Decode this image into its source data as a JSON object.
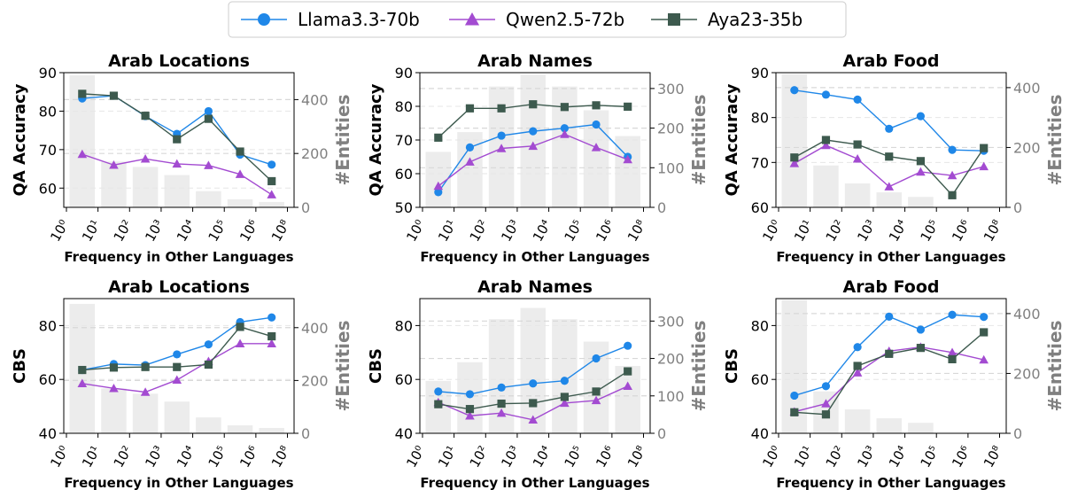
{
  "legend": {
    "placement": "top-center",
    "entries": [
      {
        "name": "Llama3.3-70b",
        "color": "#1f87e8",
        "marker": "circle"
      },
      {
        "name": "Qwen2.5-72b",
        "color": "#a34bd1",
        "marker": "triangle"
      },
      {
        "name": "Aya23-35b",
        "color": "#3d5a4e",
        "marker": "square"
      }
    ]
  },
  "styles": {
    "bar_color": "#ececec",
    "right_axis_color": "#808080",
    "grid": "dashed horizontal"
  },
  "chart_data": [
    {
      "type": "line",
      "title": "Arab Locations",
      "xlabel": "Frequency in Other Languages",
      "ylabel": "QA Accuracy",
      "y2label": "#Entities",
      "xticks": [
        "10^0",
        "10^1",
        "10^2",
        "10^3",
        "10^4",
        "10^5",
        "10^6",
        "10^8"
      ],
      "ylim": [
        55,
        90
      ],
      "yticks": [
        60,
        70,
        80,
        90
      ],
      "y2lim": [
        0,
        500
      ],
      "y2ticks": [
        0,
        200,
        400
      ],
      "bars": [
        490,
        170,
        150,
        120,
        60,
        30,
        20
      ],
      "series": [
        {
          "name": "Llama3.3-70b",
          "values": [
            83.3,
            84.0,
            78.7,
            74.1,
            80.0,
            68.7,
            66.1
          ]
        },
        {
          "name": "Qwen2.5-72b",
          "values": [
            68.8,
            66.0,
            67.6,
            66.3,
            65.9,
            63.6,
            58.3
          ]
        },
        {
          "name": "Aya23-35b",
          "values": [
            84.5,
            84.0,
            78.8,
            72.7,
            78.0,
            69.5,
            61.8
          ]
        }
      ]
    },
    {
      "type": "line",
      "title": "Arab Names",
      "xlabel": "Frequency in Other Languages",
      "ylabel": "QA Accuracy",
      "y2label": "#Entities",
      "xticks": [
        "10^0",
        "10^1",
        "10^2",
        "10^3",
        "10^4",
        "10^5",
        "10^6",
        "10^8"
      ],
      "ylim": [
        50,
        90
      ],
      "yticks": [
        50,
        60,
        70,
        80,
        90
      ],
      "y2lim": [
        0,
        340
      ],
      "y2ticks": [
        0,
        100,
        200,
        300
      ],
      "bars": [
        140,
        190,
        305,
        335,
        305,
        245,
        180
      ],
      "series": [
        {
          "name": "Llama3.3-70b",
          "values": [
            54.5,
            67.8,
            71.3,
            72.6,
            73.5,
            74.6,
            65.0
          ]
        },
        {
          "name": "Qwen2.5-72b",
          "values": [
            56.3,
            63.5,
            67.5,
            68.2,
            71.7,
            67.8,
            64.2
          ]
        },
        {
          "name": "Aya23-35b",
          "values": [
            70.7,
            79.4,
            79.4,
            80.6,
            79.8,
            80.3,
            79.9
          ]
        }
      ]
    },
    {
      "type": "line",
      "title": "Arab Food",
      "xlabel": "Frequency in Other Languages",
      "ylabel": "QA Accuracy",
      "y2label": "#Entities",
      "xticks": [
        "10^0",
        "10^1",
        "10^2",
        "10^3",
        "10^4",
        "10^5",
        "10^6",
        "10^8"
      ],
      "ylim": [
        60,
        90
      ],
      "yticks": [
        60,
        70,
        80,
        90
      ],
      "y2lim": [
        0,
        450
      ],
      "y2ticks": [
        0,
        200,
        400
      ],
      "bars": [
        445,
        140,
        80,
        50,
        35,
        0,
        0
      ],
      "series": [
        {
          "name": "Llama3.3-70b",
          "values": [
            86.1,
            85.1,
            84.0,
            77.5,
            80.3,
            72.8,
            72.6
          ]
        },
        {
          "name": "Qwen2.5-72b",
          "values": [
            69.8,
            73.8,
            70.8,
            64.6,
            67.9,
            67.1,
            69.1
          ]
        },
        {
          "name": "Aya23-35b",
          "values": [
            71.1,
            75.0,
            74.0,
            71.3,
            70.3,
            62.7,
            73.2
          ]
        }
      ]
    },
    {
      "type": "line",
      "title": "Arab Locations",
      "xlabel": "Frequency in Other Languages",
      "ylabel": "CBS",
      "y2label": "#Entities",
      "xticks": [
        "10^0",
        "10^1",
        "10^2",
        "10^3",
        "10^4",
        "10^5",
        "10^6",
        "10^8"
      ],
      "ylim": [
        40,
        90
      ],
      "yticks": [
        40,
        60,
        80
      ],
      "y2lim": [
        0,
        510
      ],
      "y2ticks": [
        0,
        200,
        400
      ],
      "bars": [
        490,
        170,
        150,
        120,
        60,
        30,
        20
      ],
      "series": [
        {
          "name": "Llama3.3-70b",
          "values": [
            63.5,
            65.7,
            65.3,
            69.3,
            73.0,
            81.3,
            83.0
          ]
        },
        {
          "name": "Qwen2.5-72b",
          "values": [
            58.5,
            56.7,
            55.3,
            59.8,
            66.7,
            73.3,
            73.3
          ]
        },
        {
          "name": "Aya23-35b",
          "values": [
            63.5,
            64.4,
            64.6,
            64.6,
            65.5,
            79.5,
            76.0
          ]
        }
      ]
    },
    {
      "type": "line",
      "title": "Arab Names",
      "xlabel": "Frequency in Other Languages",
      "ylabel": "CBS",
      "y2label": "#Entities",
      "xticks": [
        "10^0",
        "10^1",
        "10^2",
        "10^3",
        "10^4",
        "10^5",
        "10^6",
        "10^8"
      ],
      "ylim": [
        40,
        90
      ],
      "yticks": [
        40,
        60,
        80
      ],
      "y2lim": [
        0,
        360
      ],
      "y2ticks": [
        0,
        100,
        200,
        300
      ],
      "bars": [
        140,
        190,
        305,
        335,
        305,
        245,
        180
      ],
      "series": [
        {
          "name": "Llama3.3-70b",
          "values": [
            55.5,
            54.5,
            57.0,
            58.5,
            59.5,
            67.8,
            72.5
          ]
        },
        {
          "name": "Qwen2.5-72b",
          "values": [
            51.5,
            46.5,
            47.5,
            45.0,
            51.2,
            52.2,
            57.5
          ]
        },
        {
          "name": "Aya23-35b",
          "values": [
            50.8,
            49.0,
            51.0,
            51.2,
            53.5,
            55.5,
            63.0
          ]
        }
      ]
    },
    {
      "type": "line",
      "title": "Arab Food",
      "xlabel": "Frequency in Other Languages",
      "ylabel": "CBS",
      "y2label": "#Entities",
      "xticks": [
        "10^0",
        "10^1",
        "10^2",
        "10^3",
        "10^4",
        "10^5",
        "10^6",
        "10^8"
      ],
      "ylim": [
        40,
        90
      ],
      "yticks": [
        40,
        60,
        80
      ],
      "y2lim": [
        0,
        450
      ],
      "y2ticks": [
        0,
        200,
        400
      ],
      "bars": [
        445,
        140,
        80,
        50,
        35,
        0,
        0
      ],
      "series": [
        {
          "name": "Llama3.3-70b",
          "values": [
            54.0,
            57.5,
            72.0,
            83.3,
            78.5,
            84.0,
            83.2
          ]
        },
        {
          "name": "Qwen2.5-72b",
          "values": [
            48.0,
            51.0,
            62.5,
            70.5,
            72.0,
            70.0,
            67.3
          ]
        },
        {
          "name": "Aya23-35b",
          "values": [
            47.8,
            47.0,
            65.0,
            69.5,
            71.7,
            67.5,
            77.5
          ]
        }
      ]
    }
  ]
}
